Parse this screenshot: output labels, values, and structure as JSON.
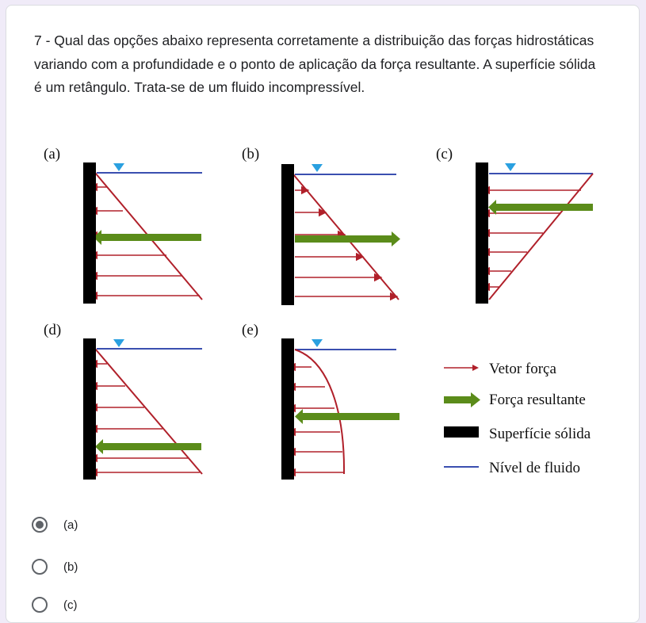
{
  "question": {
    "text": "7 - Qual das opções abaixo representa corretamente a distribuição das forças hidrostáticas variando com a profundidade e o ponto de aplicação da força resultante. A superfície sólida é um retângulo. Trata-se de um fluido incompressível."
  },
  "figure": {
    "panel_labels": [
      "(a)",
      "(b)",
      "(c)",
      "(d)",
      "(e)"
    ],
    "legend": {
      "force_vector": "Vetor força",
      "resultant_force": "Força resultante",
      "solid_surface": "Superfície sólida",
      "fluid_level": "Nível de fluido"
    },
    "colors": {
      "force": "#b0202a",
      "resultant": "#5b8c1a",
      "surface": "#000000",
      "fluid_level": "#3a4fb0",
      "fluid_marker": "#2aa0e0"
    }
  },
  "options": [
    {
      "label": "(a)",
      "selected": true
    },
    {
      "label": "(b)",
      "selected": false
    },
    {
      "label": "(c)",
      "selected": false
    }
  ]
}
